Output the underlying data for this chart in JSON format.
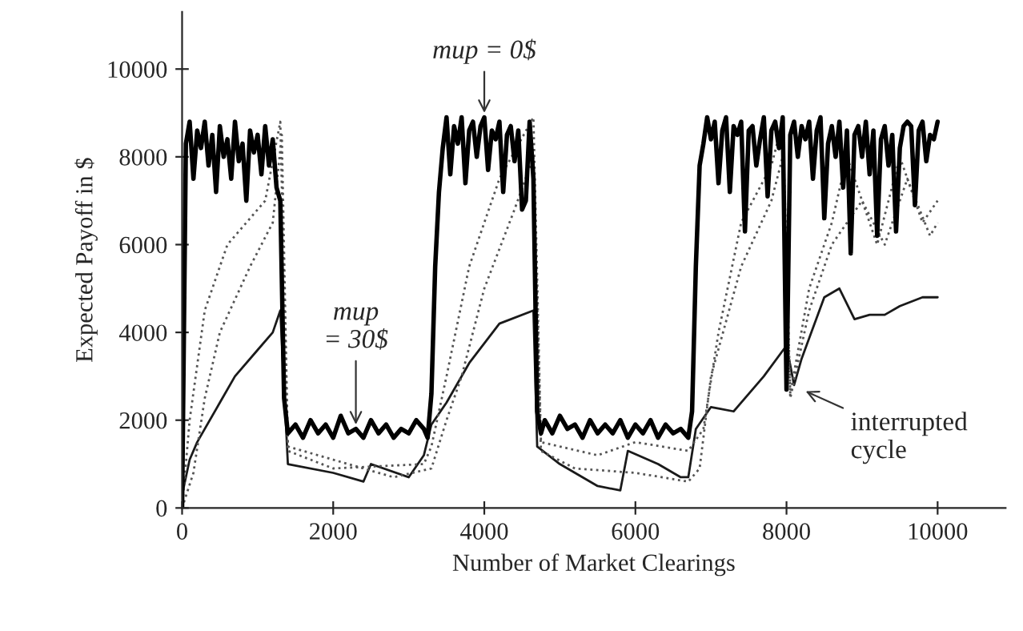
{
  "chart_data": {
    "type": "line",
    "xlabel": "Number of Market Clearings",
    "ylabel": "Expected Payoff in $",
    "xlim": [
      0,
      10900
    ],
    "ylim": [
      0,
      11300
    ],
    "xticks": [
      0,
      2000,
      4000,
      6000,
      8000,
      10000
    ],
    "yticks": [
      0,
      2000,
      4000,
      6000,
      8000,
      10000
    ],
    "grid": false,
    "legend": false,
    "marker": "none",
    "series": [
      {
        "color": "#000000",
        "line_style": "solid",
        "x": [
          0,
          50,
          100,
          150,
          200,
          250,
          300,
          350,
          400,
          450,
          500,
          550,
          600,
          650,
          700,
          750,
          800,
          850,
          900,
          950,
          1000,
          1050,
          1100,
          1150,
          1200,
          1250,
          1300,
          1350,
          1400,
          1500,
          1600,
          1700,
          1800,
          1900,
          2000,
          2100,
          2200,
          2300,
          2400,
          2500,
          2600,
          2700,
          2800,
          2900,
          3000,
          3100,
          3200,
          3250,
          3300,
          3350,
          3400,
          3450,
          3500,
          3550,
          3600,
          3650,
          3700,
          3750,
          3800,
          3850,
          3900,
          3950,
          4000,
          4050,
          4100,
          4150,
          4200,
          4250,
          4300,
          4350,
          4400,
          4450,
          4500,
          4550,
          4600,
          4650,
          4700,
          4750,
          4800,
          4900,
          5000,
          5100,
          5200,
          5300,
          5400,
          5500,
          5600,
          5700,
          5800,
          5900,
          6000,
          6100,
          6200,
          6300,
          6400,
          6500,
          6600,
          6700,
          6750,
          6800,
          6850,
          6900,
          6950,
          7000,
          7050,
          7100,
          7150,
          7200,
          7250,
          7300,
          7350,
          7400,
          7450,
          7500,
          7550,
          7600,
          7650,
          7700,
          7750,
          7800,
          7850,
          7900,
          7950,
          8000,
          8050,
          8100,
          8150,
          8200,
          8250,
          8300,
          8350,
          8400,
          8450,
          8500,
          8550,
          8600,
          8650,
          8700,
          8750,
          8800,
          8850,
          8900,
          8950,
          9000,
          9050,
          9100,
          9150,
          9200,
          9250,
          9300,
          9350,
          9400,
          9450,
          9500,
          9550,
          9600,
          9650,
          9700,
          9750,
          9800,
          9850,
          9900,
          9950,
          10000
        ],
        "values": [
          0,
          8300,
          8800,
          7500,
          8600,
          8200,
          8800,
          7800,
          8500,
          7200,
          8700,
          8000,
          8400,
          7500,
          8800,
          7900,
          8300,
          7000,
          8600,
          8100,
          8500,
          7600,
          8700,
          7800,
          8400,
          7300,
          7000,
          2500,
          1700,
          1900,
          1600,
          2000,
          1700,
          1900,
          1600,
          2100,
          1700,
          1800,
          1600,
          2000,
          1700,
          1900,
          1600,
          1800,
          1700,
          2000,
          1800,
          1600,
          2600,
          5500,
          7200,
          8200,
          8900,
          7600,
          8700,
          8300,
          8900,
          7400,
          8600,
          8800,
          8000,
          8700,
          8900,
          7700,
          8600,
          8400,
          8800,
          7200,
          8500,
          8700,
          7900,
          8600,
          6800,
          7000,
          8800,
          7500,
          2200,
          1700,
          2000,
          1700,
          2100,
          1800,
          1900,
          1600,
          2000,
          1700,
          1900,
          1700,
          2000,
          1600,
          1900,
          1700,
          2000,
          1600,
          1900,
          1700,
          1800,
          1600,
          2200,
          5500,
          7800,
          8300,
          8900,
          8400,
          8800,
          7400,
          8600,
          8900,
          7200,
          8700,
          8500,
          8800,
          6300,
          8600,
          8700,
          7800,
          8400,
          8900,
          7100,
          8600,
          8800,
          8200,
          8900,
          2700,
          8500,
          8800,
          8000,
          8700,
          8400,
          8800,
          7500,
          8600,
          8900,
          6600,
          8300,
          8700,
          8000,
          8800,
          7300,
          8600,
          5800,
          8500,
          8700,
          8000,
          8800,
          7600,
          8600,
          6200,
          8400,
          8700,
          7800,
          8500,
          6300,
          8200,
          8700,
          8800,
          8700,
          6900,
          8600,
          8800,
          7900,
          8500,
          8400,
          8800
        ]
      },
      {
        "color": "#555555",
        "line_style": "dotted",
        "x": [
          0,
          100,
          300,
          600,
          1100,
          1300,
          1400,
          2000,
          3200,
          3300,
          3500,
          3800,
          4200,
          4650,
          4750,
          5500,
          6000,
          6700,
          6900,
          7100,
          7400,
          7800,
          7950,
          8050,
          8300,
          8600,
          8800,
          9000,
          9200,
          9500,
          9800,
          10000
        ],
        "values": [
          0,
          2000,
          4500,
          6000,
          7000,
          8800,
          1300,
          900,
          1000,
          1400,
          3000,
          5500,
          7500,
          8900,
          1500,
          1200,
          1500,
          1300,
          1800,
          4000,
          6500,
          7800,
          8800,
          2600,
          5000,
          6500,
          8000,
          7000,
          6000,
          8000,
          6500,
          7000
        ]
      },
      {
        "color": "#555555",
        "line_style": "dotted",
        "x": [
          0,
          150,
          300,
          500,
          900,
          1200,
          1320,
          1400,
          2000,
          2800,
          3300,
          3500,
          3700,
          4000,
          4400,
          4650,
          4750,
          5200,
          6000,
          6700,
          6850,
          7000,
          7400,
          7800,
          7950,
          8050,
          8300,
          8600,
          9000,
          9300,
          9600,
          9900,
          10000
        ],
        "values": [
          0,
          800,
          2500,
          4000,
          5500,
          6500,
          8500,
          1400,
          1100,
          700,
          900,
          2000,
          3000,
          5000,
          6800,
          8000,
          1300,
          900,
          800,
          600,
          900,
          3000,
          5500,
          7000,
          8000,
          2500,
          4500,
          6000,
          7000,
          6000,
          7500,
          6200,
          6500
        ]
      },
      {
        "color": "#1a1a1a",
        "line_style": "solid",
        "x": [
          0,
          100,
          200,
          500,
          700,
          1000,
          1200,
          1300,
          1400,
          2000,
          2400,
          2500,
          3000,
          3200,
          3300,
          3500,
          3800,
          4200,
          4650,
          4700,
          5000,
          5500,
          5800,
          5900,
          6300,
          6600,
          6700,
          6800,
          7000,
          7300,
          7700,
          8000,
          8100,
          8200,
          8500,
          8700,
          8900,
          9100,
          9300,
          9500,
          9800,
          10000
        ],
        "values": [
          300,
          1100,
          1500,
          2400,
          3000,
          3600,
          4000,
          4500,
          1000,
          800,
          600,
          1000,
          700,
          1200,
          1900,
          2400,
          3300,
          4200,
          4500,
          1400,
          1000,
          500,
          400,
          1300,
          1000,
          700,
          700,
          1800,
          2300,
          2200,
          3000,
          3700,
          2800,
          3400,
          4800,
          5000,
          4300,
          4400,
          4400,
          4600,
          4800,
          4800
        ]
      }
    ],
    "annotations": [
      {
        "text": "mup = 0$",
        "x": 4000,
        "y": 8900
      },
      {
        "text": "mup\n= 30$",
        "x": 2300,
        "y": 1800
      },
      {
        "text": "interrupted\ncycle",
        "x": 8200,
        "y": 2700
      }
    ]
  }
}
